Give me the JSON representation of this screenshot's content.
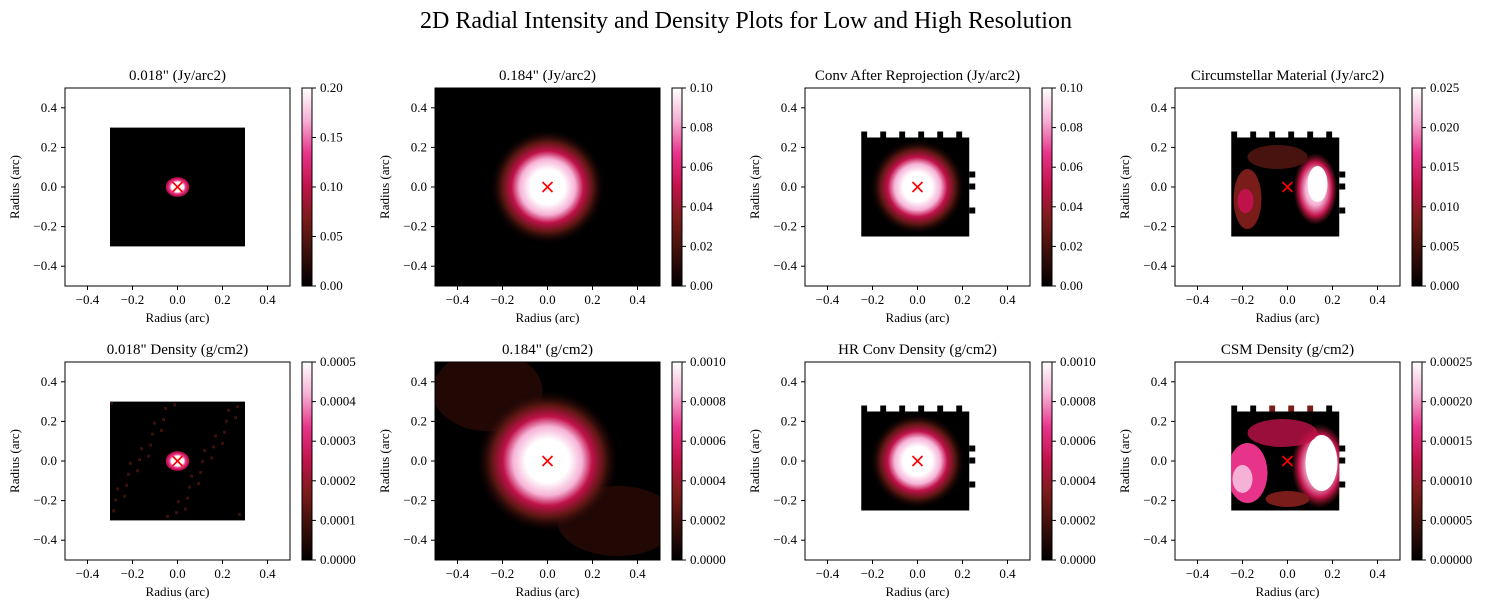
{
  "figure": {
    "title": "2D Radial Intensity and Density Plots for Low and High Resolution"
  },
  "colors": {
    "colormap": [
      "#000000",
      "#3b0f0a",
      "#7a1c1a",
      "#c0124a",
      "#e8338a",
      "#f6b2d6",
      "#ffffff"
    ],
    "marker": "#ff0000"
  },
  "chart_data": [
    {
      "type": "heatmap",
      "title": "0.018\" (Jy/arc2)",
      "xlabel": "Radius (arc)",
      "ylabel": "Radius (arc)",
      "xlim": [
        -0.5,
        0.5
      ],
      "ylim": [
        -0.5,
        0.5
      ],
      "xticks": [
        "−0.4",
        "−0.2",
        "0.0",
        "0.2",
        "0.4"
      ],
      "yticks": [
        "−0.4",
        "−0.2",
        "0.0",
        "0.2",
        "0.4"
      ],
      "data_extent": [
        -0.3,
        0.3,
        -0.3,
        0.3
      ],
      "colorbar": {
        "min": 0.0,
        "max": 0.2,
        "ticks": [
          "0.00",
          "0.05",
          "0.10",
          "0.15",
          "0.20"
        ]
      },
      "marker": {
        "x": 0.0,
        "y": 0.0,
        "symbol": "x"
      }
    },
    {
      "type": "heatmap",
      "title": "0.184\" (Jy/arc2)",
      "xlabel": "Radius (arc)",
      "ylabel": "Radius (arc)",
      "xlim": [
        -0.5,
        0.5
      ],
      "ylim": [
        -0.5,
        0.5
      ],
      "xticks": [
        "−0.4",
        "−0.2",
        "0.0",
        "0.2",
        "0.4"
      ],
      "yticks": [
        "−0.4",
        "−0.2",
        "0.0",
        "0.2",
        "0.4"
      ],
      "data_extent": [
        -0.5,
        0.5,
        -0.5,
        0.5
      ],
      "colorbar": {
        "min": 0.0,
        "max": 0.1,
        "ticks": [
          "0.00",
          "0.02",
          "0.04",
          "0.06",
          "0.08",
          "0.10"
        ]
      },
      "marker": {
        "x": 0.0,
        "y": 0.0,
        "symbol": "x"
      }
    },
    {
      "type": "heatmap",
      "title": "Conv After Reprojection (Jy/arc2)",
      "xlabel": "Radius (arc)",
      "ylabel": "Radius (arc)",
      "xlim": [
        -0.5,
        0.5
      ],
      "ylim": [
        -0.5,
        0.5
      ],
      "xticks": [
        "−0.4",
        "−0.2",
        "0.0",
        "0.2",
        "0.4"
      ],
      "yticks": [
        "−0.4",
        "−0.2",
        "0.0",
        "0.2",
        "0.4"
      ],
      "data_extent": [
        -0.25,
        0.23,
        -0.25,
        0.25
      ],
      "colorbar": {
        "min": 0.0,
        "max": 0.1,
        "ticks": [
          "0.00",
          "0.02",
          "0.04",
          "0.06",
          "0.08",
          "0.10"
        ]
      },
      "marker": {
        "x": 0.0,
        "y": 0.0,
        "symbol": "x"
      }
    },
    {
      "type": "heatmap",
      "title": "Circumstellar Material (Jy/arc2)",
      "xlabel": "Radius (arc)",
      "ylabel": "Radius (arc)",
      "xlim": [
        -0.5,
        0.5
      ],
      "ylim": [
        -0.5,
        0.5
      ],
      "xticks": [
        "−0.4",
        "−0.2",
        "0.0",
        "0.2",
        "0.4"
      ],
      "yticks": [
        "−0.4",
        "−0.2",
        "0.0",
        "0.2",
        "0.4"
      ],
      "data_extent": [
        -0.25,
        0.23,
        -0.25,
        0.25
      ],
      "colorbar": {
        "min": 0.0,
        "max": 0.025,
        "ticks": [
          "0.000",
          "0.005",
          "0.010",
          "0.015",
          "0.020",
          "0.025"
        ]
      },
      "marker": {
        "x": 0.0,
        "y": 0.0,
        "symbol": "x"
      }
    },
    {
      "type": "heatmap",
      "title": "0.018\" Density (g/cm2)",
      "xlabel": "Radius (arc)",
      "ylabel": "Radius (arc)",
      "xlim": [
        -0.5,
        0.5
      ],
      "ylim": [
        -0.5,
        0.5
      ],
      "xticks": [
        "−0.4",
        "−0.2",
        "0.0",
        "0.2",
        "0.4"
      ],
      "yticks": [
        "−0.4",
        "−0.2",
        "0.0",
        "0.2",
        "0.4"
      ],
      "data_extent": [
        -0.3,
        0.3,
        -0.3,
        0.3
      ],
      "colorbar": {
        "min": 0.0,
        "max": 0.0005,
        "ticks": [
          "0.0000",
          "0.0001",
          "0.0002",
          "0.0003",
          "0.0004",
          "0.0005"
        ]
      },
      "marker": {
        "x": 0.0,
        "y": 0.0,
        "symbol": "x"
      }
    },
    {
      "type": "heatmap",
      "title": "0.184\" (g/cm2)",
      "xlabel": "Radius (arc)",
      "ylabel": "Radius (arc)",
      "xlim": [
        -0.5,
        0.5
      ],
      "ylim": [
        -0.5,
        0.5
      ],
      "xticks": [
        "−0.4",
        "−0.2",
        "0.0",
        "0.2",
        "0.4"
      ],
      "yticks": [
        "−0.4",
        "−0.2",
        "0.0",
        "0.2",
        "0.4"
      ],
      "data_extent": [
        -0.5,
        0.5,
        -0.5,
        0.5
      ],
      "colorbar": {
        "min": 0.0,
        "max": 0.001,
        "ticks": [
          "0.0000",
          "0.0002",
          "0.0004",
          "0.0006",
          "0.0008",
          "0.0010"
        ]
      },
      "marker": {
        "x": 0.0,
        "y": 0.0,
        "symbol": "x"
      }
    },
    {
      "type": "heatmap",
      "title": "HR Conv Density (g/cm2)",
      "xlabel": "Radius (arc)",
      "ylabel": "Radius (arc)",
      "xlim": [
        -0.5,
        0.5
      ],
      "ylim": [
        -0.5,
        0.5
      ],
      "xticks": [
        "−0.4",
        "−0.2",
        "0.0",
        "0.2",
        "0.4"
      ],
      "yticks": [
        "−0.4",
        "−0.2",
        "0.0",
        "0.2",
        "0.4"
      ],
      "data_extent": [
        -0.25,
        0.23,
        -0.25,
        0.25
      ],
      "colorbar": {
        "min": 0.0,
        "max": 0.001,
        "ticks": [
          "0.0000",
          "0.0002",
          "0.0004",
          "0.0006",
          "0.0008",
          "0.0010"
        ]
      },
      "marker": {
        "x": 0.0,
        "y": 0.0,
        "symbol": "x"
      }
    },
    {
      "type": "heatmap",
      "title": "CSM Density (g/cm2)",
      "xlabel": "Radius (arc)",
      "ylabel": "Radius (arc)",
      "xlim": [
        -0.5,
        0.5
      ],
      "ylim": [
        -0.5,
        0.5
      ],
      "xticks": [
        "−0.4",
        "−0.2",
        "0.0",
        "0.2",
        "0.4"
      ],
      "yticks": [
        "−0.4",
        "−0.2",
        "0.0",
        "0.2",
        "0.4"
      ],
      "data_extent": [
        -0.25,
        0.23,
        -0.25,
        0.25
      ],
      "colorbar": {
        "min": 0.0,
        "max": 0.00025,
        "ticks": [
          "0.00000",
          "0.00005",
          "0.00010",
          "0.00015",
          "0.00020",
          "0.00025"
        ]
      },
      "marker": {
        "x": 0.0,
        "y": 0.0,
        "symbol": "x"
      }
    }
  ]
}
